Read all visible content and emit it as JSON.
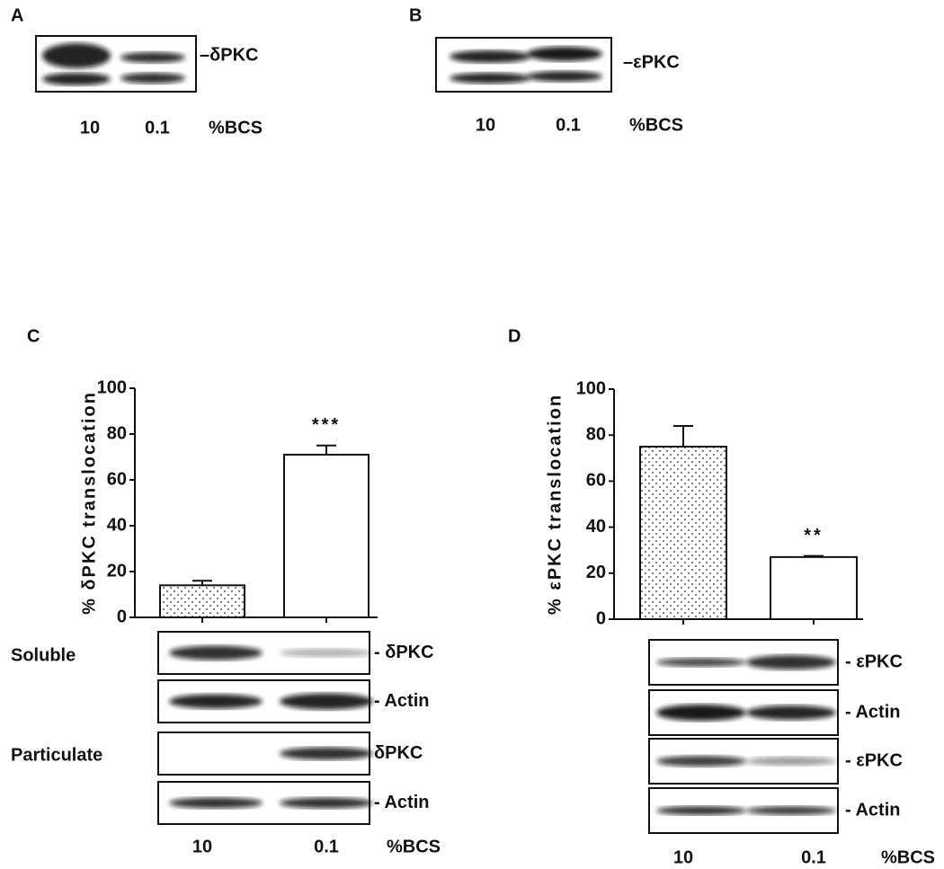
{
  "panel_a": {
    "label": "A",
    "band_label": "–δPKC",
    "lanes": [
      "10",
      "0.1"
    ],
    "lane_title": "%BCS"
  },
  "panel_b": {
    "label": "B",
    "band_label": "–εPKC",
    "lanes": [
      "10",
      "0.1"
    ],
    "lane_title": "%BCS"
  },
  "panel_c_blot": {
    "row_labels": [
      "Soluble",
      "Particulate"
    ],
    "band_labels": [
      "- δPKC",
      "- Actin",
      "δPKC",
      "- Actin"
    ]
  },
  "panel_d_blot": {
    "band_labels": [
      "- εPKC",
      "- Actin",
      "- εPKC",
      "- Actin"
    ]
  },
  "chart_data": [
    {
      "type": "bar",
      "panel": "C",
      "ylabel": "% δPKC translocation",
      "categories": [
        "10",
        "0.1"
      ],
      "xlabel": "%BCS",
      "values": [
        14,
        71
      ],
      "errors": [
        2,
        4
      ],
      "annotations": [
        {
          "category": "0.1",
          "text": "***"
        }
      ],
      "ylim": [
        0,
        100
      ],
      "yticks": [
        0,
        20,
        40,
        60,
        80,
        100
      ],
      "fills": [
        "dotted",
        "white"
      ]
    },
    {
      "type": "bar",
      "panel": "D",
      "ylabel": "% εPKC translocation",
      "categories": [
        "10",
        "0.1"
      ],
      "xlabel": "%BCS",
      "values": [
        75,
        27
      ],
      "errors": [
        9,
        0.5
      ],
      "annotations": [
        {
          "category": "0.1",
          "text": "**"
        }
      ],
      "ylim": [
        0,
        100
      ],
      "yticks": [
        0,
        20,
        40,
        60,
        80,
        100
      ],
      "fills": [
        "dotted",
        "white"
      ]
    }
  ]
}
